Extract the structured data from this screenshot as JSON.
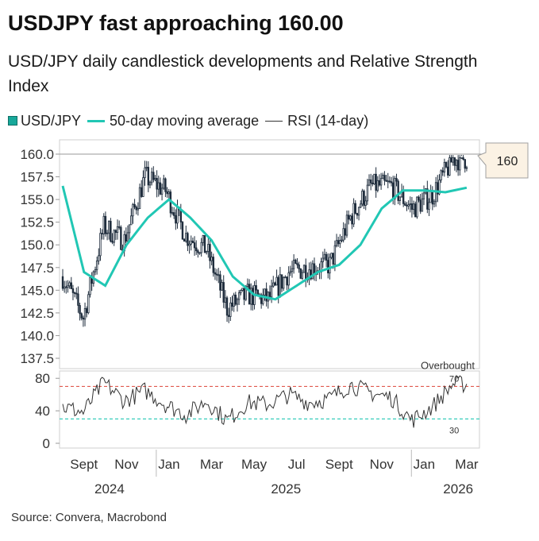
{
  "title": "USDJPY fast approaching 160.00",
  "subtitle": "USD/JPY daily candlestick developments and Relative Strength Index",
  "legend": {
    "usdjpy": "USD/JPY",
    "ma": "50-day moving average",
    "rsi": "RSI (14-day)"
  },
  "source": "Source: Convera, Macrobond",
  "colors": {
    "candles": "#1f2d3d",
    "moving_average": "#21c7b4",
    "rsi": "#333333",
    "overbought_line": "#e05a4f",
    "oversold_line": "#21c7b4"
  },
  "chart_data": [
    {
      "type": "candlestick",
      "series_name": "USD/JPY",
      "ylim": [
        137.5,
        160.0
      ],
      "yticks": [
        "160.0",
        "157.5",
        "155.0",
        "152.5",
        "150.0",
        "147.5",
        "145.0",
        "142.5",
        "140.0",
        "137.5"
      ],
      "callout_value": "160",
      "xticks_months": [
        "Sept",
        "Nov",
        "Jan",
        "Mar",
        "May",
        "Jul",
        "Sept",
        "Nov",
        "Jan",
        "Mar"
      ],
      "xticks_years": [
        "2024",
        "2025",
        "2026"
      ],
      "price_path_monthly": [
        {
          "month": "2024-08",
          "close": 146.5
        },
        {
          "month": "2024-09",
          "close": 142.0
        },
        {
          "month": "2024-10",
          "close": 152.0
        },
        {
          "month": "2024-11",
          "close": 150.5
        },
        {
          "month": "2024-12",
          "close": 157.5
        },
        {
          "month": "2025-01",
          "close": 156.0
        },
        {
          "month": "2025-02",
          "close": 151.0
        },
        {
          "month": "2025-03",
          "close": 149.5
        },
        {
          "month": "2025-04",
          "close": 143.0
        },
        {
          "month": "2025-05",
          "close": 144.5
        },
        {
          "month": "2025-06",
          "close": 144.0
        },
        {
          "month": "2025-07",
          "close": 147.0
        },
        {
          "month": "2025-08",
          "close": 147.5
        },
        {
          "month": "2025-09",
          "close": 147.8
        },
        {
          "month": "2025-10",
          "close": 153.0
        },
        {
          "month": "2025-11",
          "close": 156.5
        },
        {
          "month": "2025-12",
          "close": 156.5
        },
        {
          "month": "2026-01",
          "close": 154.0
        },
        {
          "month": "2026-02",
          "close": 155.5
        },
        {
          "month": "2026-03",
          "close": 159.5
        }
      ],
      "moving_average_monthly": [
        {
          "month": "2024-08",
          "value": 156.5
        },
        {
          "month": "2024-09",
          "value": 147.0
        },
        {
          "month": "2024-10",
          "value": 145.5
        },
        {
          "month": "2024-11",
          "value": 150.0
        },
        {
          "month": "2024-12",
          "value": 153.0
        },
        {
          "month": "2025-01",
          "value": 155.0
        },
        {
          "month": "2025-02",
          "value": 153.0
        },
        {
          "month": "2025-03",
          "value": 150.5
        },
        {
          "month": "2025-04",
          "value": 146.5
        },
        {
          "month": "2025-05",
          "value": 144.5
        },
        {
          "month": "2025-06",
          "value": 144.0
        },
        {
          "month": "2025-07",
          "value": 145.5
        },
        {
          "month": "2025-08",
          "value": 147.0
        },
        {
          "month": "2025-09",
          "value": 147.8
        },
        {
          "month": "2025-10",
          "value": 150.0
        },
        {
          "month": "2025-11",
          "value": 154.0
        },
        {
          "month": "2025-12",
          "value": 156.0
        },
        {
          "month": "2026-01",
          "value": 156.0
        },
        {
          "month": "2026-02",
          "value": 155.8
        },
        {
          "month": "2026-03",
          "value": 156.3
        }
      ]
    },
    {
      "type": "line",
      "series_name": "RSI (14-day)",
      "ylim": [
        0,
        90
      ],
      "yticks": [
        "80",
        "40",
        "0"
      ],
      "overbought": 70,
      "oversold": 30,
      "overbought_label": "Overbought",
      "overbought_value": "70",
      "oversold_value": "30",
      "rsi_monthly": [
        {
          "month": "2024-08",
          "value": 45
        },
        {
          "month": "2024-09",
          "value": 38
        },
        {
          "month": "2024-10",
          "value": 75
        },
        {
          "month": "2024-11",
          "value": 52
        },
        {
          "month": "2024-12",
          "value": 65
        },
        {
          "month": "2025-01",
          "value": 48
        },
        {
          "month": "2025-02",
          "value": 35
        },
        {
          "month": "2025-03",
          "value": 52
        },
        {
          "month": "2025-04",
          "value": 28
        },
        {
          "month": "2025-05",
          "value": 50
        },
        {
          "month": "2025-06",
          "value": 48
        },
        {
          "month": "2025-07",
          "value": 60
        },
        {
          "month": "2025-08",
          "value": 50
        },
        {
          "month": "2025-09",
          "value": 55
        },
        {
          "month": "2025-10",
          "value": 72
        },
        {
          "month": "2025-11",
          "value": 62
        },
        {
          "month": "2025-12",
          "value": 56
        },
        {
          "month": "2026-01",
          "value": 28
        },
        {
          "month": "2026-02",
          "value": 45
        },
        {
          "month": "2026-03",
          "value": 73
        }
      ]
    }
  ]
}
